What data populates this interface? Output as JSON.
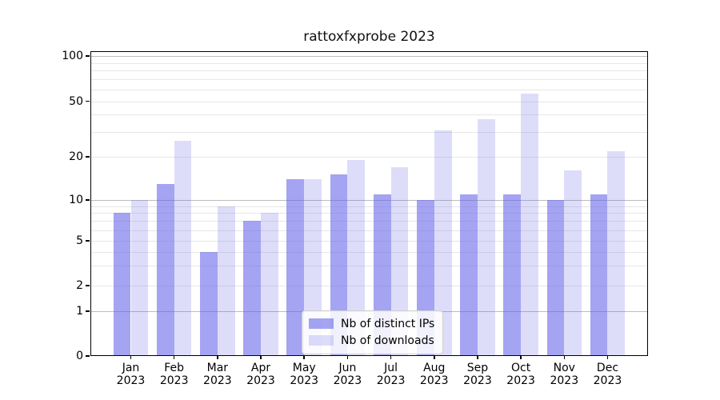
{
  "chart_data": {
    "type": "bar",
    "title": "rattoxfxprobe 2023",
    "categories": [
      "Jan 2023",
      "Feb 2023",
      "Mar 2023",
      "Apr 2023",
      "May 2023",
      "Jun 2023",
      "Jul 2023",
      "Aug 2023",
      "Sep 2023",
      "Oct 2023",
      "Nov 2023",
      "Dec 2023"
    ],
    "x_tick_months": [
      "Jan",
      "Feb",
      "Mar",
      "Apr",
      "May",
      "Jun",
      "Jul",
      "Aug",
      "Sep",
      "Oct",
      "Nov",
      "Dec"
    ],
    "x_tick_year": "2023",
    "series": [
      {
        "name": "Nb of distinct IPs",
        "color": "rgba(98,98,232,0.58)",
        "values": [
          8,
          13,
          4,
          7,
          14,
          15,
          11,
          10,
          11,
          11,
          10,
          11
        ]
      },
      {
        "name": "Nb of downloads",
        "color": "rgba(98,98,232,0.22)",
        "values": [
          10,
          26,
          9,
          8,
          14,
          19,
          17,
          31,
          37,
          56,
          16,
          22
        ]
      }
    ],
    "yscale": "symlog",
    "ylim": [
      0,
      100
    ],
    "y_tick_labels": [
      "100",
      "50",
      "20",
      "10",
      "5",
      "2",
      "1",
      "0"
    ],
    "y_tick_values": [
      100,
      50,
      20,
      10,
      5,
      2,
      1,
      0
    ],
    "minor_gridline_values": [
      90,
      80,
      70,
      60,
      50,
      40,
      30,
      20,
      9,
      8,
      7,
      6,
      5,
      4,
      3,
      2
    ],
    "major_gridline_values": [
      100,
      10,
      1
    ],
    "grid": true,
    "legend_position": "lower center",
    "xlabel": "",
    "ylabel": ""
  },
  "colors": {
    "axis": "#000000",
    "grid_minor": "#e7e7e7",
    "grid_major": "#bdbdbd",
    "background": "#ffffff",
    "text": "#000000"
  }
}
